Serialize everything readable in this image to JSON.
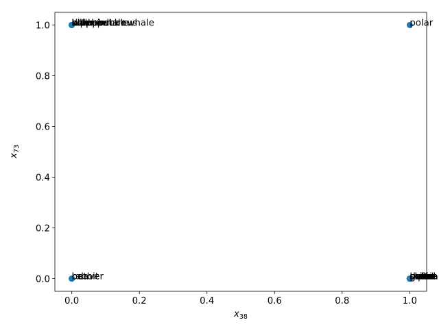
{
  "chart_data": {
    "type": "scatter",
    "title": "",
    "xlabel": {
      "base": "x",
      "sub": "38"
    },
    "ylabel": {
      "base": "x",
      "sub": "73"
    },
    "xlim": [
      -0.05,
      1.05
    ],
    "ylim": [
      -0.05,
      1.05
    ],
    "xticks": [
      0.0,
      0.2,
      0.4,
      0.6,
      0.8,
      1.0
    ],
    "yticks": [
      0.0,
      0.2,
      0.4,
      0.6,
      0.8,
      1.0
    ],
    "xtick_labels": [
      "0.0",
      "0.2",
      "0.4",
      "0.6",
      "0.8",
      "1.0"
    ],
    "ytick_labels": [
      "0.0",
      "0.2",
      "0.4",
      "0.6",
      "0.8",
      "1.0"
    ],
    "grid": false,
    "marker_color": "#1f77b4",
    "points": [
      {
        "x": 0,
        "y": 1,
        "label": "humpback+whale"
      },
      {
        "x": 0,
        "y": 1,
        "label": "hippopotamus"
      },
      {
        "x": 0,
        "y": 1,
        "label": "blue+whale"
      },
      {
        "x": 0,
        "y": 1,
        "label": "killer+whale"
      },
      {
        "x": 0,
        "y": 1,
        "label": "walrus"
      },
      {
        "x": 0,
        "y": 1,
        "label": "dolphin"
      },
      {
        "x": 0,
        "y": 1,
        "label": "seal"
      },
      {
        "x": 0,
        "y": 1,
        "label": "otter"
      },
      {
        "x": 1,
        "y": 1,
        "label": "polar+bear"
      },
      {
        "x": 0,
        "y": 0,
        "label": "beaver"
      },
      {
        "x": 0,
        "y": 0,
        "label": "rabbit"
      },
      {
        "x": 0,
        "y": 0,
        "label": "bat"
      },
      {
        "x": 1,
        "y": 0,
        "label": "grizzly+bear"
      },
      {
        "x": 1,
        "y": 0,
        "label": "dalmatian"
      },
      {
        "x": 1,
        "y": 0,
        "label": "persian+cat"
      },
      {
        "x": 1,
        "y": 0,
        "label": "german+shepherd"
      },
      {
        "x": 1,
        "y": 0,
        "label": "siamese+cat"
      },
      {
        "x": 1,
        "y": 0,
        "label": "squirrel"
      },
      {
        "x": 1,
        "y": 0,
        "label": "buffalo"
      },
      {
        "x": 1,
        "y": 0,
        "label": "chihuahua"
      },
      {
        "x": 1,
        "y": 0,
        "label": "moose"
      }
    ]
  }
}
